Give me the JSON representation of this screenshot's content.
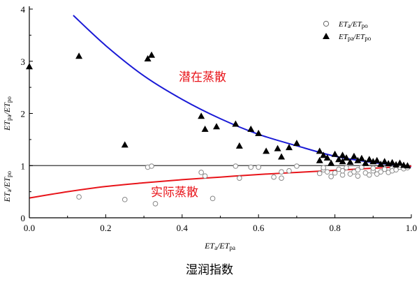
{
  "chart_data": {
    "type": "scatter",
    "title": "",
    "xlim": [
      0,
      1
    ],
    "ylim": [
      0,
      4
    ],
    "x_ticks": [
      "0.0",
      "0.2",
      "0.4",
      "0.6",
      "0.8",
      "1.0"
    ],
    "y_ticks": [
      "0",
      "1",
      "2",
      "3",
      "4"
    ],
    "xlabel": {
      "main1": "ET",
      "sub1": "a",
      "slash": "/",
      "main2": "ET",
      "sub2": "pa"
    },
    "ylabel_upper": {
      "main1": "ET",
      "sub1": "pa",
      "slash": "/",
      "main2": "ET",
      "sub2": "po"
    },
    "ylabel_lower": {
      "main1": "ET",
      "sub1": "a",
      "slash": "/",
      "main2": "ET",
      "sub2": "po"
    },
    "legend": {
      "position": "top-right",
      "entries": [
        {
          "marker": "circle",
          "main1": "ET",
          "sub1": "a",
          "slash": "/",
          "main2": "ET",
          "sub2": "po"
        },
        {
          "marker": "triangle",
          "main1": "ET",
          "sub1": "pa",
          "slash": "/",
          "main2": "ET",
          "sub2": "po"
        }
      ]
    },
    "annotations": {
      "potential": "潜在蒸散",
      "actual": "实际蒸散"
    },
    "reference_line_y": 1,
    "colors": {
      "potential_curve": "#1a1ad6",
      "actual_curve": "#e8141a",
      "reference_line": "#555555",
      "annotation": "#e8141a"
    },
    "curves": [
      {
        "x": [
          0.115,
          0.2,
          0.3,
          0.4,
          0.5,
          0.6,
          0.7,
          0.8,
          0.9,
          1.0
        ],
        "y": [
          3.88,
          3.3,
          2.72,
          2.27,
          1.9,
          1.6,
          1.38,
          1.18,
          1.06,
          0.98
        ]
      },
      {
        "x": [
          0.0,
          0.1,
          0.2,
          0.3,
          0.4,
          0.5,
          0.6,
          0.7,
          0.8,
          0.9,
          1.0
        ],
        "y": [
          0.38,
          0.5,
          0.6,
          0.67,
          0.73,
          0.78,
          0.83,
          0.87,
          0.91,
          0.95,
          0.99
        ]
      }
    ],
    "series": [
      {
        "marker": "circle",
        "points": [
          [
            0.13,
            0.4
          ],
          [
            0.25,
            0.35
          ],
          [
            0.31,
            0.97
          ],
          [
            0.32,
            0.99
          ],
          [
            0.33,
            0.27
          ],
          [
            0.45,
            0.87
          ],
          [
            0.46,
            0.8
          ],
          [
            0.48,
            0.37
          ],
          [
            0.54,
            0.99
          ],
          [
            0.55,
            0.76
          ],
          [
            0.58,
            0.97
          ],
          [
            0.6,
            0.97
          ],
          [
            0.64,
            0.78
          ],
          [
            0.66,
            0.76
          ],
          [
            0.66,
            0.88
          ],
          [
            0.68,
            0.9
          ],
          [
            0.7,
            0.99
          ],
          [
            0.76,
            0.85
          ],
          [
            0.77,
            0.92
          ],
          [
            0.77,
            0.96
          ],
          [
            0.78,
            0.88
          ],
          [
            0.79,
            0.79
          ],
          [
            0.8,
            0.86
          ],
          [
            0.81,
            0.93
          ],
          [
            0.82,
            0.82
          ],
          [
            0.82,
            0.9
          ],
          [
            0.83,
            0.96
          ],
          [
            0.84,
            0.84
          ],
          [
            0.85,
            0.88
          ],
          [
            0.86,
            0.8
          ],
          [
            0.86,
            0.92
          ],
          [
            0.87,
            0.97
          ],
          [
            0.88,
            0.86
          ],
          [
            0.89,
            0.82
          ],
          [
            0.9,
            0.9
          ],
          [
            0.9,
            0.95
          ],
          [
            0.91,
            0.84
          ],
          [
            0.92,
            0.88
          ],
          [
            0.93,
            0.93
          ],
          [
            0.94,
            0.87
          ],
          [
            0.95,
            0.95
          ],
          [
            0.95,
            0.9
          ],
          [
            0.96,
            0.92
          ],
          [
            0.97,
            0.97
          ],
          [
            0.98,
            0.94
          ],
          [
            0.99,
            0.96
          ]
        ]
      },
      {
        "marker": "triangle",
        "points": [
          [
            0.0,
            2.9
          ],
          [
            0.13,
            3.1
          ],
          [
            0.25,
            1.4
          ],
          [
            0.31,
            3.05
          ],
          [
            0.32,
            3.12
          ],
          [
            0.45,
            1.95
          ],
          [
            0.46,
            1.7
          ],
          [
            0.49,
            1.75
          ],
          [
            0.54,
            1.8
          ],
          [
            0.55,
            1.38
          ],
          [
            0.58,
            1.7
          ],
          [
            0.6,
            1.62
          ],
          [
            0.62,
            1.28
          ],
          [
            0.65,
            1.33
          ],
          [
            0.66,
            1.17
          ],
          [
            0.68,
            1.35
          ],
          [
            0.7,
            1.43
          ],
          [
            0.76,
            1.28
          ],
          [
            0.76,
            1.1
          ],
          [
            0.77,
            1.2
          ],
          [
            0.78,
            1.15
          ],
          [
            0.79,
            1.05
          ],
          [
            0.8,
            1.22
          ],
          [
            0.81,
            1.12
          ],
          [
            0.82,
            1.08
          ],
          [
            0.82,
            1.2
          ],
          [
            0.83,
            1.15
          ],
          [
            0.84,
            1.07
          ],
          [
            0.85,
            1.18
          ],
          [
            0.86,
            1.1
          ],
          [
            0.87,
            1.14
          ],
          [
            0.88,
            1.05
          ],
          [
            0.89,
            1.12
          ],
          [
            0.9,
            1.08
          ],
          [
            0.91,
            1.1
          ],
          [
            0.92,
            1.03
          ],
          [
            0.93,
            1.08
          ],
          [
            0.94,
            1.04
          ],
          [
            0.95,
            1.06
          ],
          [
            0.96,
            1.02
          ],
          [
            0.97,
            1.05
          ],
          [
            0.98,
            1.01
          ],
          [
            0.99,
            1.0
          ]
        ]
      }
    ]
  },
  "caption": "湿润指数"
}
